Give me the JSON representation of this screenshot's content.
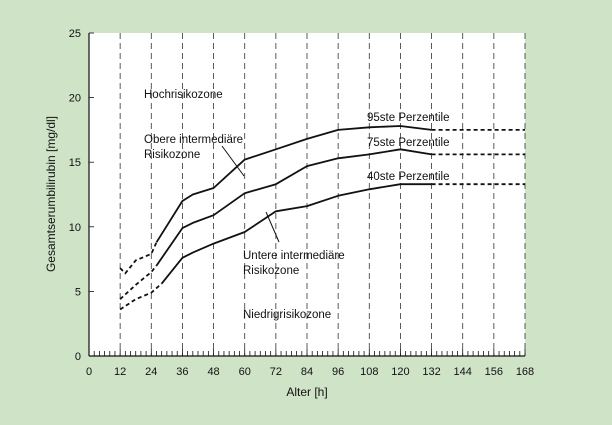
{
  "colors": {
    "background": "#cfe3c7",
    "plot_background": "#ffffff",
    "ink": "#111111"
  },
  "chart_data": {
    "type": "line",
    "xlabel": "Alter [h]",
    "ylabel": "Gesamtserumbilirubin [mg/dl]",
    "xlim": [
      0,
      168
    ],
    "ylim": [
      0,
      25
    ],
    "x_ticks": [
      "0",
      "12",
      "24",
      "36",
      "48",
      "60",
      "72",
      "84",
      "96",
      "108",
      "120",
      "132",
      "144",
      "156",
      "168"
    ],
    "y_ticks": [
      "0",
      "5",
      "10",
      "15",
      "20",
      "25"
    ],
    "grid": "vertical dashed lines every 12 h",
    "series": [
      {
        "name": "95ste Perzentile",
        "dashed": [
          [
            12,
            6.8
          ],
          [
            14,
            6.4
          ],
          [
            18,
            7.4
          ],
          [
            24,
            7.9
          ],
          [
            26,
            8.8
          ]
        ],
        "solid": [
          [
            26,
            8.8
          ],
          [
            36,
            12.0
          ],
          [
            40,
            12.5
          ],
          [
            48,
            13.0
          ],
          [
            60,
            15.2
          ],
          [
            72,
            16.0
          ],
          [
            84,
            16.8
          ],
          [
            96,
            17.5
          ],
          [
            108,
            17.7
          ],
          [
            120,
            17.8
          ],
          [
            132,
            17.5
          ]
        ],
        "dashed_end": [
          [
            132,
            17.5
          ],
          [
            168,
            17.5
          ]
        ]
      },
      {
        "name": "75ste Perzentile",
        "dashed": [
          [
            12,
            4.4
          ],
          [
            18,
            5.5
          ],
          [
            24,
            6.5
          ],
          [
            26,
            7.0
          ]
        ],
        "solid": [
          [
            26,
            7.0
          ],
          [
            36,
            9.9
          ],
          [
            40,
            10.3
          ],
          [
            48,
            10.9
          ],
          [
            60,
            12.6
          ],
          [
            72,
            13.3
          ],
          [
            84,
            14.7
          ],
          [
            96,
            15.3
          ],
          [
            108,
            15.6
          ],
          [
            120,
            16.0
          ],
          [
            132,
            15.6
          ]
        ],
        "dashed_end": [
          [
            132,
            15.6
          ],
          [
            168,
            15.6
          ]
        ]
      },
      {
        "name": "40ste Perzentile",
        "dashed": [
          [
            12,
            3.6
          ],
          [
            18,
            4.4
          ],
          [
            24,
            4.9
          ],
          [
            28,
            5.6
          ]
        ],
        "solid": [
          [
            28,
            5.6
          ],
          [
            36,
            7.6
          ],
          [
            40,
            8.0
          ],
          [
            48,
            8.7
          ],
          [
            60,
            9.6
          ],
          [
            72,
            11.2
          ],
          [
            84,
            11.6
          ],
          [
            96,
            12.4
          ],
          [
            108,
            12.9
          ],
          [
            120,
            13.3
          ],
          [
            132,
            13.3
          ]
        ],
        "dashed_end": [
          [
            132,
            13.3
          ],
          [
            168,
            13.3
          ]
        ]
      }
    ],
    "zones": [
      {
        "label": "Hochrisikozone"
      },
      {
        "label": "Obere intermediäre Risikozone",
        "lines": [
          "Obere intermediäre",
          "Risikozone"
        ]
      },
      {
        "label": "Untere intermediäre Risikozone",
        "lines": [
          "Untere intermediäre",
          "Risikozone"
        ]
      },
      {
        "label": "Niedrigrisikozone"
      }
    ]
  }
}
